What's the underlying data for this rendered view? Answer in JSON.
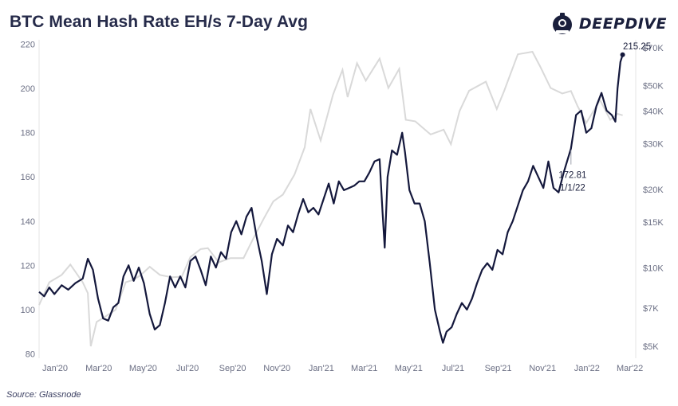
{
  "header": {
    "title": "BTC Mean Hash Rate EH/s 7-Day Avg",
    "brand": "DEEPDIVE",
    "source": "Source: Glassnode"
  },
  "colors": {
    "hash_rate": "#14183c",
    "price": "#d9d9d9",
    "grid": "#eeeeee",
    "text": "#1a1f3c"
  },
  "chart_data": {
    "type": "line",
    "title": "BTC Mean Hash Rate EH/s 7-Day Avg",
    "x_labels": [
      "Jan'20",
      "Mar'20",
      "May'20",
      "Jul'20",
      "Sep'20",
      "Nov'20",
      "Jan'21",
      "Mar'21",
      "May'21",
      "Jul'21",
      "Sep'21",
      "Nov'21",
      "Jan'22",
      "Mar'22"
    ],
    "y_left": {
      "ticks": [
        80,
        100,
        120,
        140,
        160,
        180,
        200,
        220
      ],
      "range": [
        78,
        222
      ]
    },
    "y_right": {
      "scale": "log",
      "ticks": [
        5000,
        7000,
        10000,
        15000,
        20000,
        30000,
        40000,
        50000,
        70000
      ],
      "tick_labels": [
        "$5K",
        "$7K",
        "$10K",
        "$15K",
        "$20K",
        "$30K",
        "$40K",
        "$50K",
        "$70K"
      ],
      "range": [
        4500,
        75000
      ]
    },
    "grid": false,
    "series": [
      {
        "axis": "left",
        "points": [
          [
            "2020-01-01",
            108
          ],
          [
            "2020-01-08",
            106
          ],
          [
            "2020-01-15",
            110
          ],
          [
            "2020-01-22",
            107
          ],
          [
            "2020-02-01",
            111
          ],
          [
            "2020-02-10",
            109
          ],
          [
            "2020-02-20",
            112
          ],
          [
            "2020-03-01",
            114
          ],
          [
            "2020-03-08",
            123
          ],
          [
            "2020-03-15",
            118
          ],
          [
            "2020-03-22",
            105
          ],
          [
            "2020-03-29",
            96
          ],
          [
            "2020-04-05",
            95
          ],
          [
            "2020-04-12",
            101
          ],
          [
            "2020-04-19",
            103
          ],
          [
            "2020-04-26",
            115
          ],
          [
            "2020-05-03",
            120
          ],
          [
            "2020-05-10",
            113
          ],
          [
            "2020-05-17",
            119
          ],
          [
            "2020-05-24",
            112
          ],
          [
            "2020-06-01",
            98
          ],
          [
            "2020-06-08",
            91
          ],
          [
            "2020-06-15",
            93
          ],
          [
            "2020-06-22",
            103
          ],
          [
            "2020-06-29",
            115
          ],
          [
            "2020-07-06",
            110
          ],
          [
            "2020-07-13",
            115
          ],
          [
            "2020-07-20",
            110
          ],
          [
            "2020-07-27",
            122
          ],
          [
            "2020-08-03",
            124
          ],
          [
            "2020-08-10",
            118
          ],
          [
            "2020-08-17",
            111
          ],
          [
            "2020-08-24",
            124
          ],
          [
            "2020-08-31",
            119
          ],
          [
            "2020-09-07",
            126
          ],
          [
            "2020-09-14",
            123
          ],
          [
            "2020-09-21",
            135
          ],
          [
            "2020-09-28",
            140
          ],
          [
            "2020-10-05",
            134
          ],
          [
            "2020-10-12",
            142
          ],
          [
            "2020-10-19",
            146
          ],
          [
            "2020-10-26",
            133
          ],
          [
            "2020-11-02",
            122
          ],
          [
            "2020-11-09",
            107
          ],
          [
            "2020-11-16",
            125
          ],
          [
            "2020-11-23",
            132
          ],
          [
            "2020-12-01",
            129
          ],
          [
            "2020-12-08",
            138
          ],
          [
            "2020-12-15",
            135
          ],
          [
            "2020-12-22",
            143
          ],
          [
            "2020-12-29",
            150
          ],
          [
            "2021-01-05",
            144
          ],
          [
            "2021-01-12",
            146
          ],
          [
            "2021-01-19",
            143
          ],
          [
            "2021-01-26",
            150
          ],
          [
            "2021-02-02",
            157
          ],
          [
            "2021-02-09",
            148
          ],
          [
            "2021-02-16",
            158
          ],
          [
            "2021-02-23",
            154
          ],
          [
            "2021-03-02",
            155
          ],
          [
            "2021-03-09",
            156
          ],
          [
            "2021-03-16",
            158
          ],
          [
            "2021-03-23",
            158
          ],
          [
            "2021-03-30",
            162
          ],
          [
            "2021-04-06",
            167
          ],
          [
            "2021-04-13",
            168
          ],
          [
            "2021-04-17",
            144
          ],
          [
            "2021-04-20",
            128
          ],
          [
            "2021-04-24",
            160
          ],
          [
            "2021-04-30",
            172
          ],
          [
            "2021-05-07",
            170
          ],
          [
            "2021-05-14",
            180
          ],
          [
            "2021-05-18",
            171
          ],
          [
            "2021-05-24",
            154
          ],
          [
            "2021-05-31",
            148
          ],
          [
            "2021-06-07",
            148
          ],
          [
            "2021-06-14",
            140
          ],
          [
            "2021-06-21",
            121
          ],
          [
            "2021-06-28",
            100
          ],
          [
            "2021-07-05",
            90
          ],
          [
            "2021-07-09",
            85
          ],
          [
            "2021-07-14",
            90
          ],
          [
            "2021-07-21",
            92
          ],
          [
            "2021-07-28",
            98
          ],
          [
            "2021-08-04",
            103
          ],
          [
            "2021-08-11",
            100
          ],
          [
            "2021-08-18",
            105
          ],
          [
            "2021-08-25",
            112
          ],
          [
            "2021-09-01",
            118
          ],
          [
            "2021-09-08",
            121
          ],
          [
            "2021-09-15",
            118
          ],
          [
            "2021-09-22",
            127
          ],
          [
            "2021-09-29",
            125
          ],
          [
            "2021-10-06",
            135
          ],
          [
            "2021-10-13",
            140
          ],
          [
            "2021-10-20",
            147
          ],
          [
            "2021-10-27",
            154
          ],
          [
            "2021-11-03",
            158
          ],
          [
            "2021-11-10",
            165
          ],
          [
            "2021-11-17",
            160
          ],
          [
            "2021-11-24",
            155
          ],
          [
            "2021-12-01",
            167
          ],
          [
            "2021-12-08",
            155
          ],
          [
            "2021-12-15",
            153
          ],
          [
            "2021-12-22",
            162
          ],
          [
            "2022-01-01",
            172.81
          ],
          [
            "2022-01-08",
            188
          ],
          [
            "2022-01-15",
            190
          ],
          [
            "2022-01-22",
            180
          ],
          [
            "2022-01-29",
            182
          ],
          [
            "2022-02-05",
            192
          ],
          [
            "2022-02-12",
            198
          ],
          [
            "2022-02-19",
            190
          ],
          [
            "2022-02-26",
            188
          ],
          [
            "2022-03-03",
            185
          ],
          [
            "2022-03-06",
            200
          ],
          [
            "2022-03-10",
            212
          ],
          [
            "2022-03-13",
            215.25
          ]
        ]
      },
      {
        "axis": "right",
        "points": [
          [
            "2020-01-01",
            7200
          ],
          [
            "2020-01-15",
            8800
          ],
          [
            "2020-02-01",
            9400
          ],
          [
            "2020-02-13",
            10300
          ],
          [
            "2020-03-01",
            8800
          ],
          [
            "2020-03-08",
            8000
          ],
          [
            "2020-03-12",
            5000
          ],
          [
            "2020-03-20",
            6200
          ],
          [
            "2020-04-01",
            6500
          ],
          [
            "2020-04-15",
            6900
          ],
          [
            "2020-04-29",
            8800
          ],
          [
            "2020-05-10",
            9000
          ],
          [
            "2020-05-20",
            9400
          ],
          [
            "2020-06-01",
            10100
          ],
          [
            "2020-06-15",
            9400
          ],
          [
            "2020-07-01",
            9200
          ],
          [
            "2020-07-15",
            9250
          ],
          [
            "2020-07-27",
            11000
          ],
          [
            "2020-08-10",
            11800
          ],
          [
            "2020-08-20",
            11900
          ],
          [
            "2020-09-04",
            10500
          ],
          [
            "2020-09-20",
            10900
          ],
          [
            "2020-10-08",
            10900
          ],
          [
            "2020-10-21",
            12900
          ],
          [
            "2020-11-05",
            15500
          ],
          [
            "2020-11-18",
            18000
          ],
          [
            "2020-12-01",
            19100
          ],
          [
            "2020-12-17",
            22800
          ],
          [
            "2020-12-31",
            29000
          ],
          [
            "2021-01-08",
            40700
          ],
          [
            "2021-01-22",
            30800
          ],
          [
            "2021-02-08",
            46200
          ],
          [
            "2021-02-21",
            57500
          ],
          [
            "2021-02-28",
            45200
          ],
          [
            "2021-03-13",
            61000
          ],
          [
            "2021-03-25",
            52300
          ],
          [
            "2021-04-13",
            63500
          ],
          [
            "2021-04-25",
            49000
          ],
          [
            "2021-05-10",
            58000
          ],
          [
            "2021-05-19",
            37000
          ],
          [
            "2021-06-01",
            36500
          ],
          [
            "2021-06-22",
            32500
          ],
          [
            "2021-07-10",
            33900
          ],
          [
            "2021-07-20",
            29800
          ],
          [
            "2021-08-01",
            40000
          ],
          [
            "2021-08-14",
            47800
          ],
          [
            "2021-09-06",
            51800
          ],
          [
            "2021-09-21",
            40700
          ],
          [
            "2021-10-01",
            47600
          ],
          [
            "2021-10-20",
            66000
          ],
          [
            "2021-11-09",
            67500
          ],
          [
            "2021-11-20",
            59000
          ],
          [
            "2021-12-04",
            49000
          ],
          [
            "2021-12-20",
            46700
          ],
          [
            "2022-01-01",
            47700
          ],
          [
            "2022-01-10",
            41800
          ],
          [
            "2022-01-22",
            36000
          ],
          [
            "2022-02-10",
            44000
          ],
          [
            "2022-02-24",
            37000
          ],
          [
            "2022-03-06",
            39000
          ],
          [
            "2022-03-13",
            38500
          ]
        ]
      }
    ],
    "annotations": [
      {
        "date": "2022-01-01",
        "value": 172.81,
        "lines": [
          "172.81",
          "1/1/22"
        ]
      },
      {
        "date": "2022-03-13",
        "value": 215.25,
        "lines": [
          "215.25"
        ]
      }
    ]
  }
}
